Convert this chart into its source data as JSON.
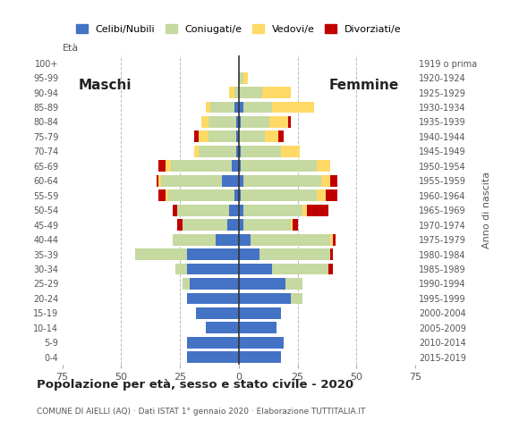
{
  "age_groups": [
    "0-4",
    "5-9",
    "10-14",
    "15-19",
    "20-24",
    "25-29",
    "30-34",
    "35-39",
    "40-44",
    "45-49",
    "50-54",
    "55-59",
    "60-64",
    "65-69",
    "70-74",
    "75-79",
    "80-84",
    "85-89",
    "90-94",
    "95-99",
    "100+"
  ],
  "birth_years": [
    "2015-2019",
    "2010-2014",
    "2005-2009",
    "2000-2004",
    "1995-1999",
    "1990-1994",
    "1985-1989",
    "1980-1984",
    "1975-1979",
    "1970-1974",
    "1965-1969",
    "1960-1964",
    "1955-1959",
    "1950-1954",
    "1945-1949",
    "1940-1944",
    "1935-1939",
    "1930-1934",
    "1925-1929",
    "1920-1924",
    "1919 o prima"
  ],
  "males": {
    "celibe": [
      22,
      22,
      14,
      18,
      22,
      21,
      22,
      22,
      10,
      5,
      4,
      2,
      7,
      3,
      1,
      1,
      1,
      2,
      0,
      0,
      0
    ],
    "coniugato": [
      0,
      0,
      0,
      0,
      0,
      3,
      5,
      22,
      18,
      19,
      22,
      28,
      26,
      26,
      16,
      12,
      12,
      10,
      2,
      0,
      0
    ],
    "vedovo": [
      0,
      0,
      0,
      0,
      0,
      0,
      0,
      0,
      0,
      0,
      0,
      1,
      1,
      2,
      2,
      4,
      3,
      2,
      2,
      0,
      0
    ],
    "divorziato": [
      0,
      0,
      0,
      0,
      0,
      0,
      0,
      0,
      0,
      2,
      2,
      3,
      1,
      3,
      0,
      2,
      0,
      0,
      0,
      0,
      0
    ]
  },
  "females": {
    "nubile": [
      18,
      19,
      16,
      18,
      22,
      20,
      14,
      9,
      5,
      2,
      2,
      1,
      2,
      1,
      1,
      0,
      1,
      2,
      0,
      0,
      0
    ],
    "coniugata": [
      0,
      0,
      0,
      0,
      5,
      7,
      24,
      30,
      34,
      20,
      25,
      32,
      33,
      32,
      17,
      11,
      12,
      12,
      10,
      2,
      0
    ],
    "vedova": [
      0,
      0,
      0,
      0,
      0,
      0,
      0,
      0,
      1,
      1,
      2,
      4,
      4,
      6,
      8,
      6,
      8,
      18,
      12,
      2,
      0
    ],
    "divorziata": [
      0,
      0,
      0,
      0,
      0,
      0,
      2,
      1,
      1,
      2,
      9,
      5,
      3,
      0,
      0,
      2,
      1,
      0,
      0,
      0,
      0
    ]
  },
  "colors": {
    "celibe": "#4472C4",
    "coniugato": "#c5d9a0",
    "vedovo": "#FFD966",
    "divorziato": "#C00000"
  },
  "xlim": 75,
  "title": "Popolazione per età, sesso e stato civile - 2020",
  "subtitle": "COMUNE DI AIELLI (AQ) · Dati ISTAT 1° gennaio 2020 · Elaborazione TUTTITALIA.IT",
  "legend_labels": [
    "Celibi/Nubili",
    "Coniugati/e",
    "Vedovi/e",
    "Divorziati/e"
  ],
  "label_maschi": "Maschi",
  "label_femmine": "Femmine",
  "label_eta": "Età",
  "label_anno": "Anno di nascita",
  "bg_color": "#ffffff",
  "grid_color": "#bbbbbb",
  "xticks": [
    -75,
    -50,
    -25,
    0,
    25,
    50,
    75
  ],
  "xticklabels": [
    "75",
    "50",
    "25",
    "0",
    "25",
    "50",
    "75"
  ]
}
